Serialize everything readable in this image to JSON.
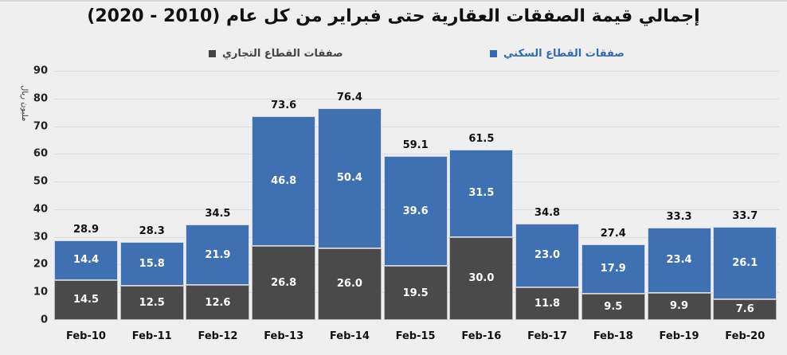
{
  "chart_data": {
    "type": "bar",
    "stacked": true,
    "title": "إجمالي قيمة الصفقات العقارية حتى فبراير من كل عام (2010 - 2020)",
    "xlabel": "",
    "ylabel": "مليون ريال",
    "ylim": [
      0,
      90
    ],
    "yticks": [
      0,
      10,
      20,
      30,
      40,
      50,
      60,
      70,
      80,
      90
    ],
    "grid": true,
    "legend_position": "top",
    "categories": [
      "Feb-10",
      "Feb-11",
      "Feb-12",
      "Feb-13",
      "Feb-14",
      "Feb-15",
      "Feb-16",
      "Feb-17",
      "Feb-18",
      "Feb-19",
      "Feb-20"
    ],
    "series": [
      {
        "name": "صفقات القطاع التجاري",
        "color": "#4a4a4a",
        "values": [
          14.5,
          12.5,
          12.6,
          26.8,
          26.0,
          19.5,
          30.0,
          11.8,
          9.5,
          9.9,
          7.6
        ]
      },
      {
        "name": "صفقات القطاع السكني",
        "color": "#3f70b2",
        "values": [
          14.4,
          15.8,
          21.9,
          46.8,
          50.4,
          39.6,
          31.5,
          23.0,
          17.9,
          23.4,
          26.1
        ]
      }
    ],
    "totals": [
      28.9,
      28.3,
      34.5,
      73.6,
      76.4,
      59.1,
      61.5,
      34.8,
      27.4,
      33.3,
      33.7
    ]
  },
  "legend": {
    "residential": "صفقات القطاع السكني",
    "commercial": "صفقات القطاع التجاري"
  }
}
